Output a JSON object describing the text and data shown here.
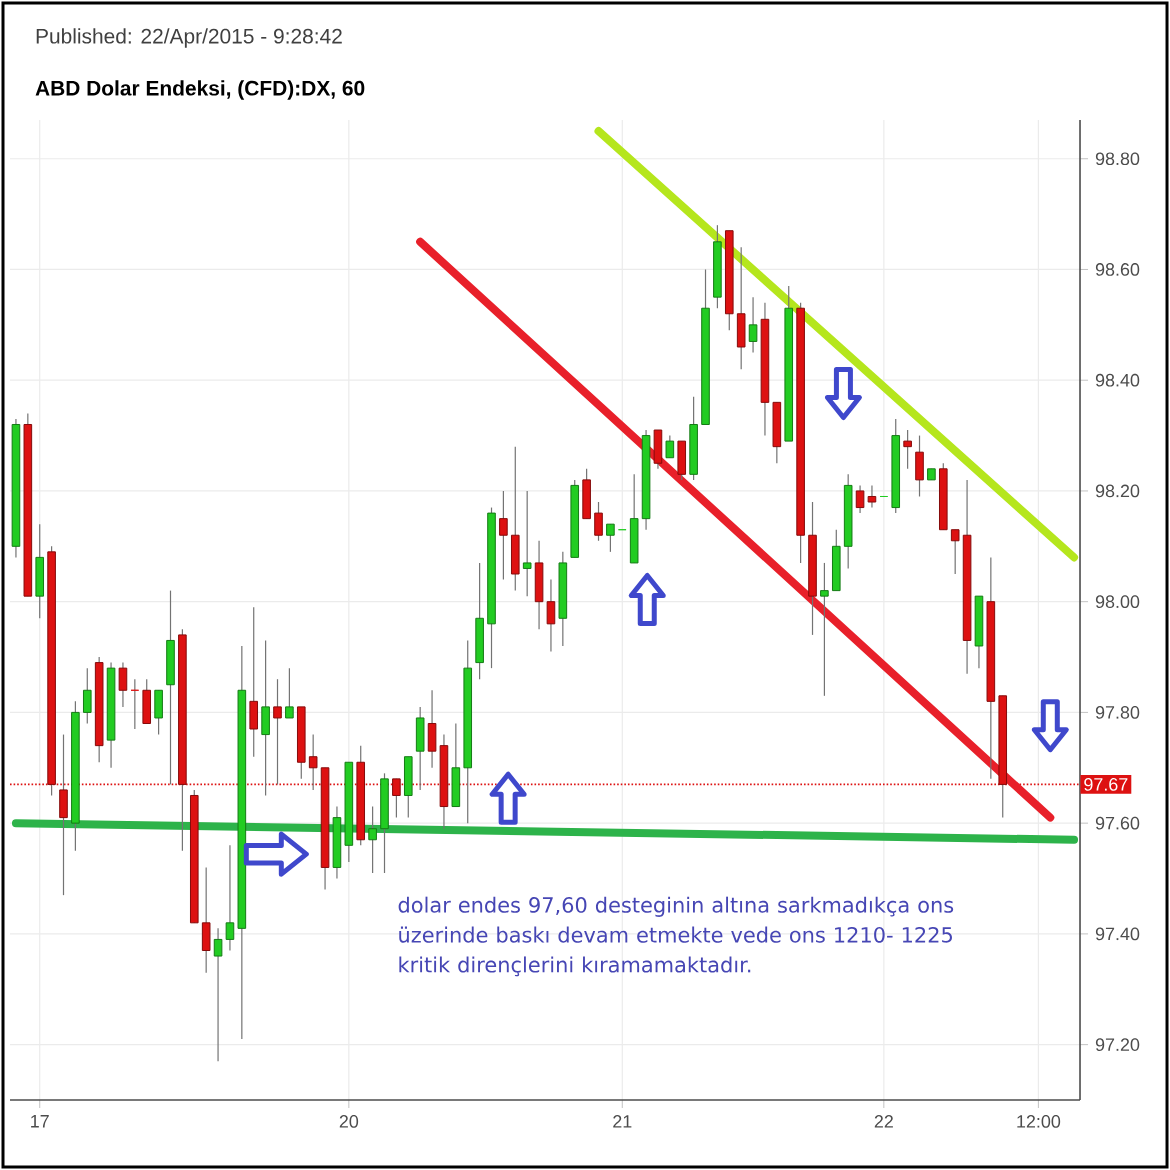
{
  "chart_data": {
    "type": "candlestick",
    "title": "ABD Dolar Endeksi, (CFD):DX, 60",
    "subtitle": "Published: 22/Apr/2015 - 9:28:42",
    "categories": [
      null,
      null,
      "17",
      null,
      null,
      null,
      null,
      null,
      null,
      null,
      null,
      null,
      null,
      null,
      null,
      null,
      null,
      null,
      null,
      null,
      null,
      null,
      null,
      null,
      null,
      null,
      null,
      null,
      "20",
      null,
      null,
      null,
      null,
      null,
      null,
      null,
      null,
      null,
      null,
      null,
      null,
      null,
      null,
      null,
      null,
      null,
      null,
      null,
      null,
      null,
      null,
      "21",
      null,
      null,
      null,
      null,
      null,
      null,
      null,
      null,
      null,
      null,
      null,
      null,
      null,
      null,
      null,
      null,
      null,
      null,
      null,
      null,
      null,
      "22",
      null,
      null,
      null,
      null,
      null,
      null,
      null,
      null,
      null,
      null,
      null,
      null,
      "12:00",
      null,
      null,
      null
    ],
    "ohlc": [
      [
        98.1,
        98.33,
        98.08,
        98.32
      ],
      [
        98.32,
        98.34,
        98.01,
        98.01
      ],
      [
        98.01,
        98.14,
        97.97,
        98.08
      ],
      [
        98.09,
        98.1,
        97.65,
        97.67
      ],
      [
        97.66,
        97.76,
        97.47,
        97.61
      ],
      [
        97.6,
        97.82,
        97.55,
        97.8
      ],
      [
        97.8,
        97.88,
        97.78,
        97.84
      ],
      [
        97.89,
        97.9,
        97.71,
        97.74
      ],
      [
        97.75,
        97.89,
        97.7,
        97.88
      ],
      [
        97.88,
        97.89,
        97.81,
        97.84
      ],
      [
        97.84,
        97.86,
        97.77,
        97.84
      ],
      [
        97.84,
        97.86,
        97.78,
        97.78
      ],
      [
        97.79,
        97.84,
        97.76,
        97.84
      ],
      [
        97.85,
        98.02,
        97.67,
        97.93
      ],
      [
        97.94,
        97.95,
        97.55,
        97.67
      ],
      [
        97.65,
        97.66,
        97.42,
        97.42
      ],
      [
        97.42,
        97.52,
        97.33,
        97.37
      ],
      [
        97.36,
        97.41,
        97.17,
        97.39
      ],
      [
        97.39,
        97.56,
        97.37,
        97.42
      ],
      [
        97.41,
        97.92,
        97.21,
        97.84
      ],
      [
        97.82,
        97.99,
        97.72,
        97.77
      ],
      [
        97.76,
        97.93,
        97.65,
        97.81
      ],
      [
        97.81,
        97.86,
        97.67,
        97.79
      ],
      [
        97.79,
        97.88,
        97.79,
        97.81
      ],
      [
        97.81,
        97.81,
        97.68,
        97.71
      ],
      [
        97.72,
        97.76,
        97.66,
        97.7
      ],
      [
        97.7,
        97.7,
        97.48,
        97.52
      ],
      [
        97.52,
        97.63,
        97.5,
        97.61
      ],
      [
        97.56,
        97.71,
        97.53,
        97.71
      ],
      [
        97.71,
        97.74,
        97.56,
        97.57
      ],
      [
        97.57,
        97.63,
        97.51,
        97.59
      ],
      [
        97.59,
        97.69,
        97.51,
        97.68
      ],
      [
        97.68,
        97.68,
        97.61,
        97.65
      ],
      [
        97.65,
        97.72,
        97.61,
        97.72
      ],
      [
        97.73,
        97.81,
        97.66,
        97.79
      ],
      [
        97.78,
        97.84,
        97.7,
        97.73
      ],
      [
        97.74,
        97.76,
        97.59,
        97.63
      ],
      [
        97.63,
        97.78,
        97.63,
        97.7
      ],
      [
        97.7,
        97.93,
        97.6,
        97.88
      ],
      [
        97.89,
        98.07,
        97.86,
        97.97
      ],
      [
        97.96,
        98.17,
        97.88,
        98.16
      ],
      [
        98.15,
        98.2,
        98.04,
        98.12
      ],
      [
        98.12,
        98.28,
        98.02,
        98.05
      ],
      [
        98.06,
        98.2,
        98.01,
        98.07
      ],
      [
        98.07,
        98.11,
        97.95,
        98.0
      ],
      [
        98.0,
        98.04,
        97.91,
        97.96
      ],
      [
        97.97,
        98.09,
        97.92,
        98.07
      ],
      [
        98.08,
        98.22,
        98.08,
        98.21
      ],
      [
        98.22,
        98.24,
        98.15,
        98.15
      ],
      [
        98.16,
        98.18,
        98.11,
        98.12
      ],
      [
        98.12,
        98.14,
        98.09,
        98.14
      ],
      [
        98.13,
        98.13,
        98.13,
        98.13
      ],
      [
        98.07,
        98.23,
        98.07,
        98.15
      ],
      [
        98.15,
        98.31,
        98.13,
        98.3
      ],
      [
        98.31,
        98.31,
        98.24,
        98.25
      ],
      [
        98.26,
        98.3,
        98.26,
        98.29
      ],
      [
        98.29,
        98.29,
        98.22,
        98.23
      ],
      [
        98.23,
        98.37,
        98.22,
        98.32
      ],
      [
        98.32,
        98.6,
        98.32,
        98.53
      ],
      [
        98.55,
        98.68,
        98.53,
        98.65
      ],
      [
        98.67,
        98.67,
        98.49,
        98.52
      ],
      [
        98.52,
        98.64,
        98.42,
        98.46
      ],
      [
        98.47,
        98.55,
        98.45,
        98.5
      ],
      [
        98.51,
        98.54,
        98.3,
        98.36
      ],
      [
        98.36,
        98.36,
        98.25,
        98.28
      ],
      [
        98.29,
        98.57,
        98.29,
        98.53
      ],
      [
        98.53,
        98.54,
        98.07,
        98.12
      ],
      [
        98.12,
        98.18,
        97.94,
        98.01
      ],
      [
        98.01,
        98.07,
        97.83,
        98.02
      ],
      [
        98.02,
        98.13,
        98.02,
        98.1
      ],
      [
        98.1,
        98.23,
        98.06,
        98.21
      ],
      [
        98.2,
        98.21,
        98.16,
        98.17
      ],
      [
        98.19,
        98.21,
        98.17,
        98.18
      ],
      [
        98.19,
        98.19,
        98.19,
        98.19
      ],
      [
        98.17,
        98.33,
        98.16,
        98.3
      ],
      [
        98.29,
        98.31,
        98.24,
        98.28
      ],
      [
        98.27,
        98.3,
        98.19,
        98.22
      ],
      [
        98.22,
        98.24,
        98.22,
        98.24
      ],
      [
        98.24,
        98.25,
        98.13,
        98.13
      ],
      [
        98.13,
        98.13,
        98.05,
        98.11
      ],
      [
        98.12,
        98.22,
        97.87,
        97.93
      ],
      [
        97.92,
        98.01,
        97.88,
        98.01
      ],
      [
        98.0,
        98.08,
        97.68,
        97.82
      ],
      [
        97.83,
        97.83,
        97.61,
        97.67
      ],
      null,
      null,
      null,
      null,
      null,
      null
    ],
    "colors": [
      "#22cc22",
      "#dd1111",
      "#22cc22",
      "#dd1111",
      "#dd1111",
      "#22cc22",
      "#22cc22",
      "#dd1111",
      "#22cc22",
      "#dd1111",
      "#dd1111",
      "#dd1111",
      "#22cc22",
      "#22cc22",
      "#dd1111",
      "#dd1111",
      "#dd1111",
      "#22cc22",
      "#22cc22",
      "#22cc22",
      "#dd1111",
      "#22cc22",
      "#dd1111",
      "#22cc22",
      "#dd1111",
      "#dd1111",
      "#dd1111",
      "#22cc22",
      "#22cc22",
      "#dd1111",
      "#22cc22",
      "#22cc22",
      "#dd1111",
      "#22cc22",
      "#22cc22",
      "#dd1111",
      "#dd1111",
      "#22cc22",
      "#22cc22",
      "#22cc22",
      "#22cc22",
      "#dd1111",
      "#dd1111",
      "#22cc22",
      "#dd1111",
      "#dd1111",
      "#22cc22",
      "#22cc22",
      "#dd1111",
      "#dd1111",
      "#22cc22",
      "#22cc22",
      "#22cc22",
      "#22cc22",
      "#dd1111",
      "#22cc22",
      "#dd1111",
      "#22cc22",
      "#22cc22",
      "#22cc22",
      "#dd1111",
      "#dd1111",
      "#22cc22",
      "#dd1111",
      "#dd1111",
      "#22cc22",
      "#dd1111",
      "#dd1111",
      "#22cc22",
      "#22cc22",
      "#22cc22",
      "#dd1111",
      "#dd1111",
      "#22cc22",
      "#22cc22",
      "#dd1111",
      "#dd1111",
      "#22cc22",
      "#dd1111",
      "#dd1111",
      "#dd1111",
      "#22cc22",
      "#dd1111",
      "#dd1111",
      null,
      null,
      null,
      null,
      null,
      null
    ],
    "series": [
      {
        "type": "line",
        "color": "#2db34a",
        "values": [
          97.6,
          null,
          null,
          null,
          null,
          null,
          null,
          null,
          null,
          null,
          null,
          null,
          null,
          null,
          null,
          null,
          null,
          null,
          null,
          null,
          null,
          null,
          null,
          null,
          null,
          null,
          null,
          null,
          null,
          null,
          null,
          null,
          null,
          null,
          null,
          null,
          null,
          null,
          null,
          null,
          null,
          null,
          null,
          null,
          null,
          null,
          null,
          null,
          null,
          null,
          null,
          null,
          null,
          null,
          null,
          null,
          null,
          null,
          null,
          null,
          null,
          null,
          null,
          null,
          null,
          null,
          null,
          null,
          null,
          null,
          null,
          null,
          null,
          null,
          null,
          null,
          null,
          null,
          null,
          null,
          null,
          null,
          null,
          null,
          null,
          null,
          null,
          null,
          null,
          97.57
        ]
      },
      {
        "type": "line",
        "color": "#e8202a",
        "values": [
          null,
          null,
          null,
          null,
          null,
          null,
          null,
          null,
          null,
          null,
          null,
          null,
          null,
          null,
          null,
          null,
          null,
          null,
          null,
          null,
          null,
          null,
          null,
          null,
          null,
          null,
          null,
          null,
          null,
          null,
          null,
          null,
          null,
          null,
          98.65,
          null,
          null,
          null,
          null,
          null,
          null,
          null,
          null,
          null,
          null,
          null,
          null,
          null,
          null,
          null,
          null,
          null,
          null,
          null,
          null,
          null,
          null,
          null,
          null,
          null,
          null,
          null,
          null,
          null,
          null,
          null,
          null,
          null,
          null,
          null,
          null,
          null,
          null,
          null,
          null,
          null,
          null,
          null,
          null,
          null,
          null,
          null,
          null,
          null,
          null,
          null,
          null,
          97.61,
          null,
          null
        ]
      },
      {
        "type": "line",
        "color": "#b5e61d",
        "values": [
          null,
          null,
          null,
          null,
          null,
          null,
          null,
          null,
          null,
          null,
          null,
          null,
          null,
          null,
          null,
          null,
          null,
          null,
          null,
          null,
          null,
          null,
          null,
          null,
          null,
          null,
          null,
          null,
          null,
          null,
          null,
          null,
          null,
          null,
          null,
          null,
          null,
          null,
          null,
          null,
          null,
          null,
          null,
          null,
          null,
          null,
          null,
          null,
          null,
          98.85,
          null,
          null,
          null,
          null,
          null,
          null,
          null,
          null,
          null,
          null,
          null,
          null,
          null,
          null,
          null,
          null,
          null,
          null,
          null,
          null,
          null,
          null,
          null,
          null,
          null,
          null,
          null,
          null,
          null,
          null,
          null,
          null,
          null,
          null,
          null,
          null,
          null,
          null,
          null,
          98.08
        ]
      }
    ],
    "ylim": [
      97.1,
      98.87
    ],
    "yticks": [
      {
        "value": 97.2,
        "label": "97.20"
      },
      {
        "value": 97.4,
        "label": "97.40"
      },
      {
        "value": 97.6,
        "label": "97.60"
      },
      {
        "value": 97.8,
        "label": "97.80"
      },
      {
        "value": 98.0,
        "label": "98.00"
      },
      {
        "value": 98.2,
        "label": "98.20"
      },
      {
        "value": 98.4,
        "label": "98.40"
      },
      {
        "value": 98.6,
        "label": "98.60"
      },
      {
        "value": 98.8,
        "label": "98.80"
      }
    ],
    "grid": true,
    "ref_lines": [
      {
        "axis": "y",
        "value": 97.67,
        "label": "97.67",
        "color": "#dd1111",
        "line_style": "dotted"
      }
    ],
    "annotations": [
      "dolar endes 97,60 desteginin altına sarkmadıkça ons üzerinde baskı devam etmekte vede ons 1210- 1225 kritik dirençlerini kıramamaktadır."
    ]
  }
}
